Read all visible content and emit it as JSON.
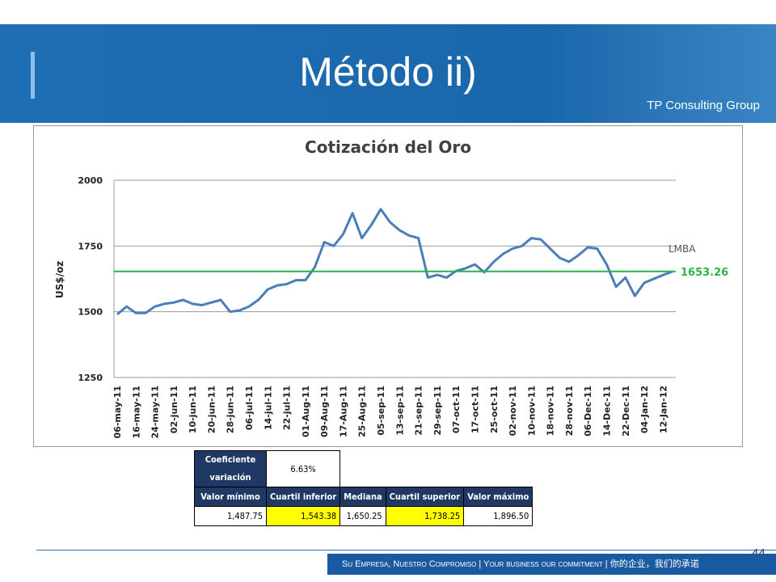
{
  "header": {
    "title": "Método ii)",
    "logo_text": "TP Consulting Group"
  },
  "chart_data": {
    "type": "line",
    "title": "Cotización del Oro",
    "y_label": "US$/oz",
    "categories": [
      "06-may-11",
      null,
      "16-may-11",
      null,
      "24-may-11",
      null,
      "02-jun-11",
      null,
      "10-jun-11",
      null,
      "20-jun-11",
      null,
      "28-jun-11",
      null,
      "06-jul-11",
      null,
      "14-jul-11",
      null,
      "22-jul-11",
      null,
      "01-Aug-11",
      null,
      "09-Aug-11",
      null,
      "17-Aug-11",
      null,
      "25-Aug-11",
      null,
      "05-sep-11",
      null,
      "13-sep-11",
      null,
      "21-sep-11",
      null,
      "29-sep-11",
      null,
      "07-oct-11",
      null,
      "17-oct-11",
      null,
      "25-oct-11",
      null,
      "02-nov-11",
      null,
      "10-nov-11",
      null,
      "18-nov-11",
      null,
      "28-nov-11",
      null,
      "06-Dec-11",
      null,
      "14-Dec-11",
      null,
      "22-Dec-11",
      null,
      "04-Jan-12",
      null,
      "12-Jan-12",
      null
    ],
    "series": [
      {
        "name": "LMBA",
        "color": "#4a7ebb",
        "values": [
          1490,
          1520,
          1495,
          1495,
          1520,
          1530,
          1535,
          1545,
          1530,
          1525,
          1535,
          1545,
          1500,
          1505,
          1520,
          1545,
          1585,
          1600,
          1605,
          1620,
          1620,
          1670,
          1765,
          1750,
          1795,
          1875,
          1780,
          1830,
          1890,
          1840,
          1810,
          1790,
          1780,
          1630,
          1640,
          1630,
          1655,
          1665,
          1680,
          1650,
          1690,
          1720,
          1740,
          1750,
          1780,
          1775,
          1740,
          1705,
          1690,
          1715,
          1745,
          1740,
          1680,
          1595,
          1630,
          1560,
          1610,
          1625,
          1640,
          1653
        ]
      }
    ],
    "reference_line": {
      "value": 1653.26,
      "color": "#2ab34b"
    },
    "ylim": [
      1250,
      2000
    ],
    "yticks": [
      1250,
      1500,
      1750,
      2000
    ],
    "grid": true
  },
  "table": {
    "cv_label": "Coeficiente variación",
    "cv_value": "6.63%",
    "headers": [
      "Valor mínimo",
      "Cuartil inferior",
      "Mediana",
      "Cuartil superior",
      "Valor máximo"
    ],
    "values": [
      "1,487.75",
      "1,543.38",
      "1,650.25",
      "1,738.25",
      "1,896.50"
    ]
  },
  "page_number": "44",
  "footer": "Su Empresa, Nuestro Compromiso | Your business our commitment | 你的企业，我们的承诺"
}
